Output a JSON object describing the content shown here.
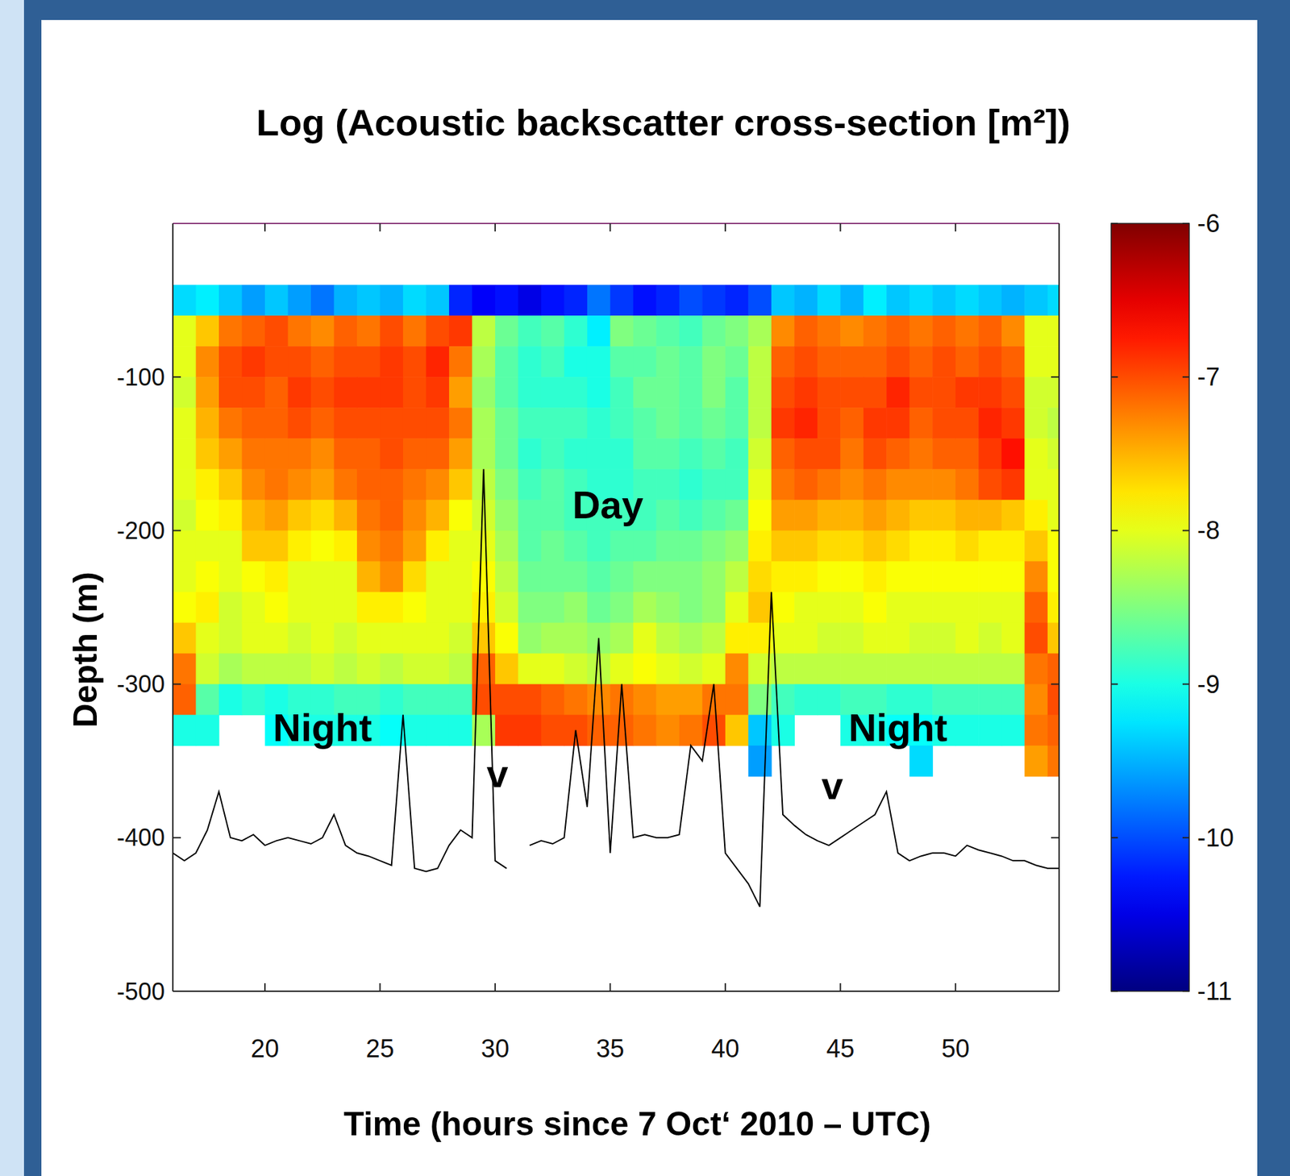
{
  "chart_data": {
    "type": "heatmap",
    "title": "Log (Acoustic backscatter cross-section [m²])",
    "x_label": "Time (hours since 7 Oct‘ 2010 – UTC)",
    "y_label": "Depth (m)",
    "xlim": [
      16,
      54.5
    ],
    "ylim": [
      -500,
      0
    ],
    "xticks": [
      20,
      25,
      30,
      35,
      40,
      45,
      50
    ],
    "yticks": [
      -100,
      -200,
      -300,
      -400,
      -500
    ],
    "grid": false,
    "x_bins": [
      16,
      17,
      18,
      19,
      20,
      21,
      22,
      23,
      24,
      25,
      26,
      27,
      28,
      29,
      30,
      31,
      32,
      33,
      34,
      35,
      36,
      37,
      38,
      39,
      40,
      41,
      42,
      43,
      44,
      45,
      46,
      47,
      48,
      49,
      50,
      51,
      52,
      53,
      54,
      55
    ],
    "y_bins": [
      -40,
      -60,
      -80,
      -100,
      -120,
      -140,
      -160,
      -180,
      -200,
      -220,
      -240,
      -260,
      -280,
      -300,
      -320,
      -340,
      -360
    ],
    "cells": [
      [
        -9.3,
        -8.0,
        -8.0,
        -8.1,
        -8.0,
        -8.0,
        -8.0,
        -8.1,
        -8.0,
        -8.0,
        -7.9,
        -7.6,
        -7.2,
        -7.1,
        -9.0,
        null
      ],
      [
        -9.2,
        -7.6,
        -7.3,
        -7.4,
        -7.5,
        -7.6,
        -7.8,
        -7.9,
        -8.0,
        -7.9,
        -7.8,
        -8.0,
        -8.1,
        -8.7,
        -9.0,
        null
      ],
      [
        -9.4,
        -7.2,
        -7.0,
        -7.0,
        -7.2,
        -7.4,
        -7.6,
        -7.8,
        -8.0,
        -8.0,
        -8.1,
        -8.1,
        -8.3,
        -9.0,
        null,
        null
      ],
      [
        -9.6,
        -7.1,
        -6.9,
        -7.0,
        -7.1,
        -7.2,
        -7.3,
        -7.5,
        -7.6,
        -7.9,
        -8.0,
        -8.0,
        -8.2,
        -8.9,
        null,
        null
      ],
      [
        -9.4,
        -7.0,
        -7.0,
        -7.1,
        -7.1,
        -7.2,
        -7.2,
        -7.4,
        -7.6,
        -7.8,
        -7.9,
        -8.0,
        -8.2,
        -9.0,
        -9.1,
        null
      ],
      [
        -9.6,
        -7.2,
        -7.0,
        -6.9,
        -7.0,
        -7.2,
        -7.3,
        -7.6,
        -7.8,
        -8.0,
        -8.0,
        -8.1,
        -8.2,
        -8.9,
        -9.0,
        null
      ],
      [
        -9.8,
        -7.3,
        -7.1,
        -7.0,
        -7.1,
        -7.3,
        -7.4,
        -7.7,
        -7.9,
        -8.0,
        -8.0,
        -8.0,
        -8.1,
        -8.9,
        -9.0,
        null
      ],
      [
        -9.5,
        -7.1,
        -7.0,
        -6.9,
        -7.0,
        -7.1,
        -7.2,
        -7.5,
        -7.8,
        -8.0,
        -8.0,
        -8.1,
        -8.2,
        -8.8,
        -9.0,
        null
      ],
      [
        -9.4,
        -7.2,
        -7.0,
        -6.9,
        -7.0,
        -7.1,
        -7.1,
        -7.2,
        -7.3,
        -7.5,
        -7.8,
        -8.0,
        -8.1,
        -8.8,
        -9.0,
        null
      ],
      [
        -9.5,
        -7.0,
        -6.9,
        -6.9,
        -7.0,
        -7.0,
        -7.1,
        -7.1,
        -7.2,
        -7.3,
        -7.8,
        -8.0,
        -8.2,
        -8.9,
        -9.1,
        null
      ],
      [
        -9.3,
        -7.2,
        -7.0,
        -7.0,
        -7.0,
        -7.1,
        -7.2,
        -7.3,
        -7.4,
        -7.7,
        -7.9,
        -8.0,
        -8.1,
        -8.8,
        -9.0,
        null
      ],
      [
        -9.4,
        -7.0,
        -6.8,
        -6.9,
        -7.0,
        -7.1,
        -7.3,
        -7.5,
        -7.8,
        -8.0,
        -8.0,
        -8.0,
        -8.1,
        -8.8,
        -9.0,
        null
      ],
      [
        -10.2,
        -6.9,
        -7.2,
        -7.4,
        -7.2,
        -7.4,
        -7.6,
        -7.9,
        -8.0,
        -8.0,
        -8.0,
        -8.1,
        -8.2,
        -8.8,
        -9.0,
        null
      ],
      [
        -10.4,
        -8.2,
        -8.3,
        -8.4,
        -8.3,
        -8.3,
        -8.2,
        -8.1,
        -8.0,
        -7.9,
        -7.8,
        -7.6,
        -7.1,
        -7.0,
        -8.3,
        null
      ],
      [
        -10.3,
        -8.6,
        -8.7,
        -8.7,
        -8.6,
        -8.6,
        -8.5,
        -8.4,
        -8.3,
        -8.2,
        -8.1,
        -7.9,
        -7.6,
        -7.0,
        -6.9,
        null
      ],
      [
        -10.5,
        -8.8,
        -8.9,
        -8.9,
        -8.8,
        -8.9,
        -8.8,
        -8.7,
        -8.7,
        -8.6,
        -8.5,
        -8.4,
        -8.0,
        -7.0,
        -6.9,
        null
      ],
      [
        -10.3,
        -8.7,
        -8.8,
        -8.9,
        -8.8,
        -8.8,
        -8.7,
        -8.7,
        -8.6,
        -8.6,
        -8.5,
        -8.3,
        -8.0,
        -7.1,
        -7.0,
        null
      ],
      [
        -10.2,
        -8.9,
        -9.0,
        -8.9,
        -8.8,
        -8.9,
        -8.8,
        -8.8,
        -8.7,
        -8.6,
        -8.4,
        -8.3,
        -8.1,
        -7.2,
        -7.0,
        null
      ],
      [
        -9.8,
        -9.2,
        -9.0,
        -9.0,
        -8.9,
        -8.9,
        -8.9,
        -8.8,
        -8.8,
        -8.7,
        -8.6,
        -8.4,
        -8.2,
        -7.3,
        -7.1,
        null
      ],
      [
        -10.1,
        -8.5,
        -8.7,
        -8.8,
        -8.8,
        -8.9,
        -8.9,
        -8.8,
        -8.7,
        -8.6,
        -8.5,
        -8.3,
        -8.0,
        -7.2,
        -7.1,
        null
      ],
      [
        -10.3,
        -8.6,
        -8.7,
        -8.6,
        -8.7,
        -8.7,
        -8.8,
        -8.8,
        -8.7,
        -8.5,
        -8.3,
        -8.0,
        -7.9,
        -7.3,
        -7.2,
        null
      ],
      [
        -10.2,
        -8.7,
        -8.6,
        -8.6,
        -8.6,
        -8.7,
        -8.8,
        -8.7,
        -8.6,
        -8.5,
        -8.4,
        -8.2,
        -8.0,
        -7.4,
        -7.3,
        null
      ],
      [
        -10.0,
        -8.8,
        -8.7,
        -8.7,
        -8.7,
        -8.8,
        -8.9,
        -8.8,
        -8.6,
        -8.5,
        -8.5,
        -8.3,
        -8.1,
        -7.4,
        -7.2,
        null
      ],
      [
        -10.1,
        -8.6,
        -8.5,
        -8.5,
        -8.6,
        -8.7,
        -8.8,
        -8.7,
        -8.5,
        -8.4,
        -8.4,
        -8.2,
        -8.0,
        -7.2,
        -7.0,
        null
      ],
      [
        -10.2,
        -8.5,
        -8.6,
        -8.7,
        -8.7,
        -8.8,
        -8.8,
        -8.6,
        -8.4,
        -8.2,
        -8.0,
        -7.8,
        -7.3,
        -7.2,
        -7.6,
        null
      ],
      [
        -10.0,
        -8.3,
        -8.2,
        -8.2,
        -8.2,
        -8.1,
        -8.0,
        -7.9,
        -7.8,
        -7.7,
        -7.6,
        -7.8,
        -8.1,
        -8.5,
        -9.4,
        -9.6
      ],
      [
        -9.4,
        -7.3,
        -7.1,
        -7.0,
        -6.9,
        -7.1,
        -7.2,
        -7.4,
        -7.6,
        -7.8,
        -7.9,
        -8.0,
        -8.2,
        -8.8,
        -9.0,
        null
      ],
      [
        -9.5,
        -7.1,
        -7.0,
        -6.9,
        -6.8,
        -7.0,
        -7.1,
        -7.4,
        -7.6,
        -7.8,
        -8.0,
        -8.0,
        -8.2,
        -8.9,
        null,
        null
      ],
      [
        -9.3,
        -7.2,
        -7.1,
        -7.0,
        -7.0,
        -7.0,
        -7.2,
        -7.5,
        -7.7,
        -7.9,
        -8.0,
        -8.1,
        -8.2,
        -8.9,
        null,
        null
      ],
      [
        -9.5,
        -7.3,
        -7.1,
        -7.0,
        -7.1,
        -7.2,
        -7.3,
        -7.5,
        -7.7,
        -7.9,
        -8.0,
        -8.1,
        -8.2,
        -8.8,
        -9.0,
        null
      ],
      [
        -9.2,
        -7.2,
        -7.1,
        -7.0,
        -6.9,
        -7.0,
        -7.2,
        -7.4,
        -7.6,
        -7.8,
        -7.9,
        -8.0,
        -8.2,
        -8.8,
        -9.0,
        null
      ],
      [
        -9.4,
        -7.1,
        -7.0,
        -6.8,
        -6.9,
        -7.1,
        -7.3,
        -7.5,
        -7.7,
        -7.9,
        -8.0,
        -8.0,
        -8.2,
        -8.9,
        -9.1,
        null
      ],
      [
        -9.3,
        -7.2,
        -7.1,
        -7.0,
        -7.1,
        -7.2,
        -7.3,
        -7.6,
        -7.8,
        -7.9,
        -8.0,
        -8.1,
        -8.2,
        -8.9,
        -9.1,
        -9.3
      ],
      [
        -9.4,
        -7.1,
        -7.0,
        -7.0,
        -7.0,
        -7.1,
        -7.3,
        -7.6,
        -7.8,
        -7.9,
        -8.0,
        -8.1,
        -8.2,
        -8.8,
        -9.0,
        null
      ],
      [
        -9.3,
        -7.2,
        -7.1,
        -6.9,
        -7.0,
        -7.1,
        -7.2,
        -7.5,
        -7.7,
        -7.9,
        -8.0,
        -8.0,
        -8.2,
        -8.8,
        -9.0,
        null
      ],
      [
        -9.4,
        -7.1,
        -7.0,
        -6.9,
        -6.8,
        -6.9,
        -7.0,
        -7.5,
        -7.8,
        -7.9,
        -8.0,
        -8.1,
        -8.2,
        -8.8,
        -9.0,
        null
      ],
      [
        -9.5,
        -7.3,
        -7.1,
        -7.0,
        -6.9,
        -6.7,
        -6.9,
        -7.6,
        -7.8,
        -7.9,
        -8.0,
        -8.0,
        -8.2,
        -8.8,
        -9.0,
        null
      ],
      [
        -9.4,
        -8.0,
        -8.0,
        -8.1,
        -8.1,
        -8.0,
        -8.0,
        -7.8,
        -7.6,
        -7.3,
        -7.1,
        -7.0,
        -7.2,
        -7.3,
        -7.2,
        -7.4
      ],
      [
        -9.3,
        -8.0,
        -8.0,
        -8.1,
        -8.2,
        -8.1,
        -8.0,
        -8.0,
        -7.9,
        -7.9,
        -7.8,
        -7.6,
        -7.1,
        -7.0,
        -7.1,
        -7.2
      ]
    ],
    "colorbar": {
      "range": [
        -11,
        -6
      ],
      "ticks": [
        -6,
        -7,
        -8,
        -9,
        -10,
        -11
      ]
    },
    "series": [
      {
        "type": "line",
        "color": "#000000",
        "x": [
          16,
          16.5,
          17,
          17.5,
          18,
          18.5,
          19,
          19.5,
          20,
          20.5,
          21,
          21.5,
          22,
          22.5,
          23,
          23.5,
          24,
          24.5,
          25,
          25.5,
          26,
          26.5,
          27,
          27.5,
          28,
          28.5,
          29,
          29.5,
          30,
          30.5,
          31,
          31.5,
          32,
          32.5,
          33,
          33.5,
          34,
          34.5,
          35,
          35.5,
          36,
          36.5,
          37,
          37.5,
          38,
          38.5,
          39,
          39.5,
          40,
          40.5,
          41,
          41.5,
          42,
          42.5,
          43,
          43.5,
          44,
          44.5,
          45,
          45.5,
          46,
          46.5,
          47,
          47.5,
          48,
          48.5,
          49,
          49.5,
          50,
          50.5,
          51,
          51.5,
          52,
          52.5,
          53,
          53.5,
          54,
          54.5
        ],
        "values": [
          -410,
          -415,
          -410,
          -395,
          -370,
          -400,
          -402,
          -398,
          -405,
          -402,
          -400,
          -402,
          -404,
          -400,
          -385,
          -405,
          -410,
          -412,
          -415,
          -418,
          -320,
          -420,
          -422,
          -420,
          -405,
          -395,
          -400,
          -160,
          -415,
          -420,
          null,
          -405,
          -402,
          -404,
          -400,
          -330,
          -380,
          -270,
          -410,
          -300,
          -400,
          -398,
          -400,
          -400,
          -398,
          -340,
          -350,
          -300,
          -410,
          -420,
          -430,
          -445,
          -240,
          -385,
          -392,
          -398,
          -402,
          -405,
          -400,
          -395,
          -390,
          -385,
          -370,
          -410,
          -415,
          -412,
          -410,
          -410,
          -412,
          -405,
          -408,
          -410,
          -412,
          -415,
          -415,
          -418,
          -420,
          -420
        ]
      }
    ],
    "annotations": [
      {
        "text": "Night",
        "x": 22.5,
        "y": -328
      },
      {
        "text": "Day",
        "x": 34.9,
        "y": -183
      },
      {
        "text": "Night",
        "x": 47.5,
        "y": -328
      },
      {
        "text": "v",
        "x": 30.1,
        "y": -358
      },
      {
        "text": "v",
        "x": 44.65,
        "y": -366
      }
    ]
  }
}
